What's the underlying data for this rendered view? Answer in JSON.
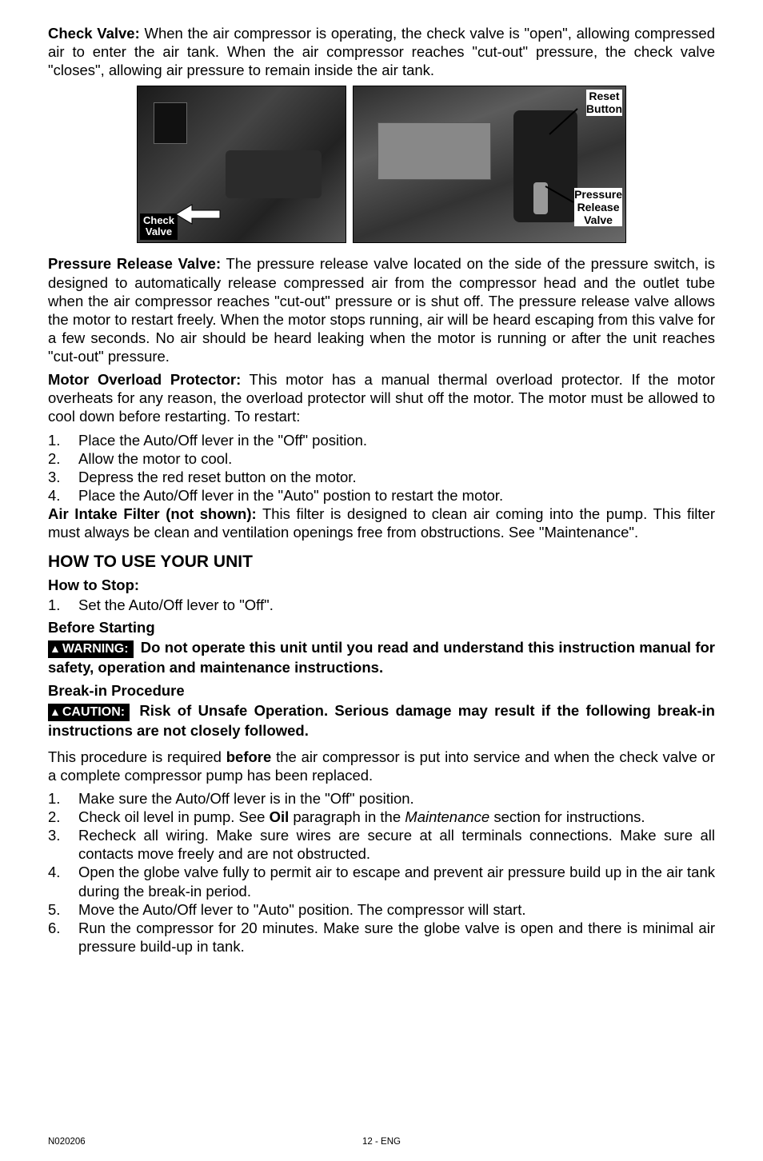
{
  "p1": {
    "lead": "Check Valve:",
    "text": "  When the air compressor is operating, the check valve is \"open\", allowing compressed air to enter the air tank.  When the air compressor reaches \"cut-out\" pressure, the check valve \"closes\", allowing air pressure to remain inside the air tank."
  },
  "img": {
    "checkValve": "Check\nValve",
    "resetButton": "Reset\nButton",
    "pressureRelease": "Pressure\nRelease\nValve"
  },
  "p2": {
    "lead": "Pressure Release Valve:",
    "text": "  The pressure release valve located on the side of the pressure switch, is designed to automatically release compressed air from the compressor head and the outlet tube when the air compressor reaches \"cut-out\" pressure or is shut off. The pressure release valve allows the motor to restart freely. When the motor stops running, air will be heard escaping from this valve for a few seconds.  No air should be heard leaking when the motor is running or after the unit reaches \"cut-out\" pressure."
  },
  "p3": {
    "lead": "Motor Overload Protector:",
    "text": " This motor has a manual thermal overload protector. If the motor overheats for any reason, the overload protector will shut off the motor.  The motor must be allowed to cool down before restarting.  To restart:"
  },
  "list1": {
    "i1": "Place the Auto/Off lever in the \"Off\" position.",
    "i2": "Allow the motor to cool.",
    "i3": "Depress the red reset button on the motor.",
    "i4": "Place the Auto/Off lever in the \"Auto\" postion to restart the motor."
  },
  "p4": {
    "lead": "Air Intake Filter (not shown):",
    "text": " This filter is designed to clean air coming into the pump. This filter must always be clean and ventilation openings free from obstructions. See \"Maintenance\"."
  },
  "h2": "HOW TO USE YOUR UNIT",
  "h3a": "How to Stop:",
  "list2": {
    "i1": "Set the Auto/Off lever to \"Off\"."
  },
  "h3b": "Before Starting",
  "warn1": {
    "badge": "WARNING:",
    "text": " Do not operate this unit until you read and understand this instruction manual for safety, operation and maintenance instructions."
  },
  "h3c": "Break-in Procedure",
  "warn2": {
    "badge": "CAUTION:",
    "text": " Risk of Unsafe Operation. Serious damage may result if the following break-in instructions are not closely followed."
  },
  "p5a": "This procedure is required ",
  "p5b": "before",
  "p5c": " the air compressor is put into service and when the check valve or a complete compressor pump has been replaced.",
  "list3": {
    "i1": "Make sure the Auto/Off lever is in the \"Off\" position.",
    "i2a": "Check oil level in pump. See ",
    "i2b": "Oil",
    "i2c": " paragraph in the ",
    "i2d": "Maintenance",
    "i2e": " section for instructions.",
    "i3": "Recheck all wiring. Make sure wires are secure at all terminals connections. Make sure all contacts move freely and are not obstructed.",
    "i4": "Open the globe valve fully to permit air to escape and prevent air pressure build up in the air tank during the break-in period.",
    "i5": "Move the Auto/Off lever to \"Auto\" position. The compressor will start.",
    "i6": "Run the compressor for 20 minutes. Make sure the globe valve is open and there is minimal air pressure build-up in tank."
  },
  "footer": {
    "left": "N020206",
    "center": "12 - ENG"
  },
  "colors": {
    "text": "#000000",
    "bg": "#ffffff",
    "badgeBg": "#000000",
    "badgeFg": "#ffffff"
  }
}
